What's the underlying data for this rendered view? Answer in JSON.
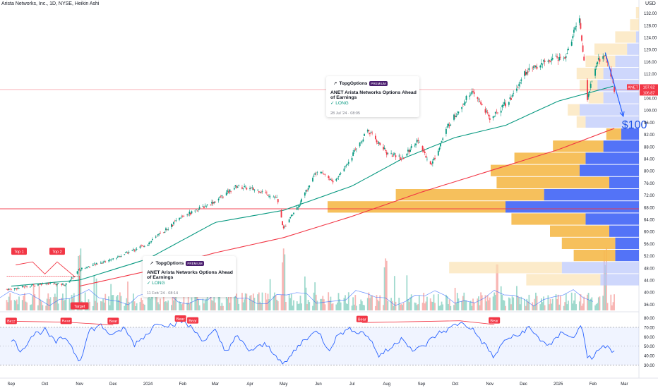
{
  "header": {
    "symbol_line": "Arista Networks, Inc., 1D, NYSE, Heikin Ashi",
    "currency": "USD"
  },
  "chart_data": {
    "type": "candlestick",
    "style": "Heikin Ashi",
    "y_axis": {
      "range": [
        34,
        134
      ],
      "tick_labels": [
        "132.00",
        "128.00",
        "124.00",
        "120.00",
        "116.00",
        "112.00",
        "108.00",
        "104.00",
        "100.00",
        "96.00",
        "92.00",
        "88.00",
        "84.00",
        "80.00",
        "76.00",
        "72.00",
        "68.00",
        "64.00",
        "60.00",
        "56.00",
        "52.00",
        "48.00",
        "44.00",
        "40.00",
        "36.00"
      ]
    },
    "x_axis": {
      "labels": [
        "Sep",
        "Oct",
        "Nov",
        "Dec",
        "2024",
        "Feb",
        "Mar",
        "Apr",
        "May",
        "Jun",
        "Jul",
        "Aug",
        "Sep",
        "Oct",
        "Nov",
        "Dec",
        "2025",
        "Feb",
        "Mar"
      ]
    },
    "price_path": [
      [
        "2023-09-01",
        41
      ],
      [
        "2023-10-01",
        43
      ],
      [
        "2023-10-20",
        42.5
      ],
      [
        "2023-11-01",
        47.5
      ],
      [
        "2023-12-01",
        51
      ],
      [
        "2024-01-01",
        56
      ],
      [
        "2024-02-01",
        65
      ],
      [
        "2024-03-01",
        70
      ],
      [
        "2024-03-20",
        75
      ],
      [
        "2024-04-10",
        73.5
      ],
      [
        "2024-04-25",
        71
      ],
      [
        "2024-05-01",
        61
      ],
      [
        "2024-05-15",
        69
      ],
      [
        "2024-06-01",
        81
      ],
      [
        "2024-06-15",
        76
      ],
      [
        "2024-07-01",
        85
      ],
      [
        "2024-07-15",
        93.5
      ],
      [
        "2024-08-01",
        86
      ],
      [
        "2024-08-15",
        84
      ],
      [
        "2024-08-28",
        90
      ],
      [
        "2024-09-10",
        82
      ],
      [
        "2024-09-25",
        95
      ],
      [
        "2024-10-15",
        106
      ],
      [
        "2024-10-25",
        102
      ],
      [
        "2024-11-01",
        97
      ],
      [
        "2024-11-20",
        104
      ],
      [
        "2024-12-01",
        112
      ],
      [
        "2024-12-20",
        116
      ],
      [
        "2025-01-08",
        118
      ],
      [
        "2025-01-20",
        131
      ],
      [
        "2025-01-27",
        104
      ],
      [
        "2025-02-05",
        116
      ],
      [
        "2025-02-12",
        119
      ],
      [
        "2025-02-20",
        107
      ]
    ],
    "price_labels": [
      {
        "text": "ANET",
        "color": "#f23645"
      },
      {
        "text": "107.62",
        "color": "#f23645"
      },
      {
        "text": "106.87",
        "color": "#f23645"
      }
    ],
    "horizontal_lines": [
      106.8,
      67.5
    ],
    "moving_averages": [
      {
        "color": "#089981",
        "values": [
          [
            "2023-09-01",
            42
          ],
          [
            "2023-11-01",
            44
          ],
          [
            "2024-01-01",
            51
          ],
          [
            "2024-03-01",
            63
          ],
          [
            "2024-05-01",
            67
          ],
          [
            "2024-07-01",
            75
          ],
          [
            "2024-08-15",
            84
          ],
          [
            "2024-10-01",
            91
          ],
          [
            "2024-11-15",
            95
          ],
          [
            "2025-01-01",
            103
          ],
          [
            "2025-02-20",
            108
          ]
        ]
      },
      {
        "color": "#f23645",
        "values": [
          [
            "2023-11-01",
            42
          ],
          [
            "2024-01-01",
            47
          ],
          [
            "2024-03-01",
            53
          ],
          [
            "2024-05-01",
            58
          ],
          [
            "2024-07-01",
            65
          ],
          [
            "2024-09-01",
            73
          ],
          [
            "2024-11-01",
            80
          ],
          [
            "2025-01-01",
            87
          ],
          [
            "2025-02-20",
            94
          ]
        ]
      }
    ],
    "volume_profile_rows": [
      {
        "price": 132,
        "buy": 1,
        "sell": 0
      },
      {
        "price": 128,
        "buy": 3,
        "sell": 0
      },
      {
        "price": 124,
        "buy": 7,
        "sell": 1
      },
      {
        "price": 120,
        "buy": 11,
        "sell": 4
      },
      {
        "price": 116,
        "buy": 10,
        "sell": 8
      },
      {
        "price": 112,
        "buy": 9,
        "sell": 12
      },
      {
        "price": 108,
        "buy": 6,
        "sell": 14
      },
      {
        "price": 104,
        "buy": 5,
        "sell": 12
      },
      {
        "price": 100,
        "buy": 4,
        "sell": 20
      },
      {
        "price": 96,
        "buy": 3,
        "sell": 18
      },
      {
        "price": 92,
        "buy": 5,
        "sell": 6
      },
      {
        "price": 88,
        "buy": 17,
        "sell": 12
      },
      {
        "price": 84,
        "buy": 24,
        "sell": 18
      },
      {
        "price": 80,
        "buy": 30,
        "sell": 20
      },
      {
        "price": 76,
        "buy": 38,
        "sell": 10
      },
      {
        "price": 72,
        "buy": 50,
        "sell": 32
      },
      {
        "price": 68,
        "buy": 60,
        "sell": 45
      },
      {
        "price": 64,
        "buy": 25,
        "sell": 18
      },
      {
        "price": 60,
        "buy": 20,
        "sell": 10
      },
      {
        "price": 56,
        "buy": 18,
        "sell": 8
      },
      {
        "price": 52,
        "buy": 14,
        "sell": 8
      },
      {
        "price": 48,
        "buy": 38,
        "sell": 26
      },
      {
        "price": 44,
        "buy": 25,
        "sell": 13
      }
    ],
    "projection": {
      "from": [
        "2025-02-12",
        119
      ],
      "to": [
        "2025-02-28",
        98
      ],
      "label": "$100"
    },
    "signal_labels": [
      {
        "text": "Top 1",
        "date": "2023-09-08",
        "price": 53.5,
        "color": "#f23645"
      },
      {
        "text": "Top 2",
        "date": "2023-10-12",
        "price": 53.5,
        "color": "#f23645"
      },
      {
        "text": "Target",
        "date": "2023-11-01",
        "price": 35.5,
        "color": "#f23645"
      }
    ],
    "rsi": {
      "y_range": [
        25,
        82
      ],
      "tick_labels": [
        "80.00",
        "70.00",
        "60.00",
        "50.00",
        "40.00",
        "30.00"
      ],
      "band": [
        30,
        70
      ],
      "mid": 50,
      "values": [
        [
          "2023-09-01",
          58
        ],
        [
          "2023-09-10",
          45
        ],
        [
          "2023-09-20",
          62
        ],
        [
          "2023-10-01",
          67
        ],
        [
          "2023-10-10",
          54
        ],
        [
          "2023-10-20",
          60
        ],
        [
          "2023-11-01",
          34
        ],
        [
          "2023-11-10",
          67
        ],
        [
          "2023-11-20",
          72
        ],
        [
          "2023-12-01",
          60
        ],
        [
          "2023-12-10",
          70
        ],
        [
          "2023-12-20",
          52
        ],
        [
          "2024-01-01",
          64
        ],
        [
          "2024-01-10",
          76
        ],
        [
          "2024-01-20",
          72
        ],
        [
          "2024-02-01",
          77
        ],
        [
          "2024-02-10",
          68
        ],
        [
          "2024-02-20",
          56
        ],
        [
          "2024-03-01",
          66
        ],
        [
          "2024-03-10",
          44
        ],
        [
          "2024-03-20",
          60
        ],
        [
          "2024-04-01",
          45
        ],
        [
          "2024-04-15",
          52
        ],
        [
          "2024-04-25",
          40
        ],
        [
          "2024-05-01",
          29
        ],
        [
          "2024-05-10",
          44
        ],
        [
          "2024-05-20",
          58
        ],
        [
          "2024-06-01",
          66
        ],
        [
          "2024-06-10",
          46
        ],
        [
          "2024-06-20",
          64
        ],
        [
          "2024-07-01",
          68
        ],
        [
          "2024-07-15",
          62
        ],
        [
          "2024-07-25",
          40
        ],
        [
          "2024-08-05",
          48
        ],
        [
          "2024-08-15",
          60
        ],
        [
          "2024-08-25",
          44
        ],
        [
          "2024-09-05",
          52
        ],
        [
          "2024-09-15",
          63
        ],
        [
          "2024-09-25",
          68
        ],
        [
          "2024-10-05",
          75
        ],
        [
          "2024-10-15",
          70
        ],
        [
          "2024-10-25",
          55
        ],
        [
          "2024-11-05",
          38
        ],
        [
          "2024-11-15",
          58
        ],
        [
          "2024-11-25",
          60
        ],
        [
          "2024-12-05",
          70
        ],
        [
          "2024-12-15",
          58
        ],
        [
          "2024-12-25",
          50
        ],
        [
          "2025-01-05",
          66
        ],
        [
          "2025-01-15",
          58
        ],
        [
          "2025-01-22",
          74
        ],
        [
          "2025-01-27",
          40
        ],
        [
          "2025-02-01",
          34
        ],
        [
          "2025-02-06",
          48
        ],
        [
          "2025-02-12",
          50
        ],
        [
          "2025-02-20",
          43
        ]
      ],
      "bear_labels": [
        {
          "text": "Bear",
          "date": "2023-09-01",
          "value": 76.5
        },
        {
          "text": "Bear",
          "date": "2023-10-20",
          "value": 76.5
        },
        {
          "text": "Bear",
          "date": "2023-12-01",
          "value": 76.5
        },
        {
          "text": "Bear",
          "date": "2024-01-30",
          "value": 79
        },
        {
          "text": "Bear",
          "date": "2024-02-10",
          "value": 77
        },
        {
          "text": "Bear",
          "date": "2024-07-10",
          "value": 78.5
        },
        {
          "text": "Bear",
          "date": "2024-11-05",
          "value": 77
        }
      ]
    }
  },
  "idea_cards": [
    {
      "source": "TopgOptions",
      "badge": "PREMIUM",
      "title": "ANET Arista Networks Options Ahead of Earnings",
      "direction": "✓ LONG",
      "timestamp": "28 Jul '24 · 08:05"
    },
    {
      "source": "TopgOptions",
      "badge": "PREMIUM",
      "title": "ANET Arista Networks Options Ahead of Earnings",
      "direction": "✓ LONG",
      "timestamp": "11 Feb '24 · 08:14"
    }
  ]
}
